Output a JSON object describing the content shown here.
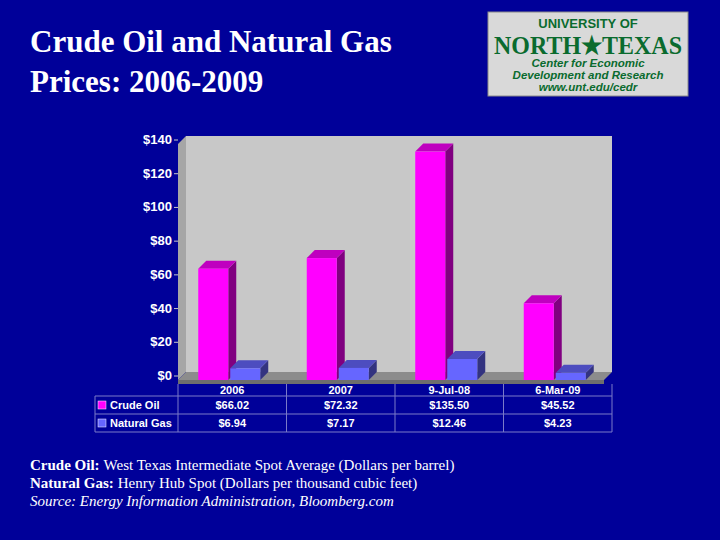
{
  "chart_data": {
    "type": "bar",
    "title": "Crude Oil and Natural Gas Prices: 2006-2009",
    "categories": [
      "2006",
      "2007",
      "9-Jul-08",
      "6-Mar-09"
    ],
    "series": [
      {
        "name": "Crude Oil",
        "color": "#ff00ff",
        "values": [
          66.02,
          72.32,
          135.5,
          45.52
        ],
        "value_labels": [
          "$66.02",
          "$72.32",
          "$135.50",
          "$45.52"
        ]
      },
      {
        "name": "Natural Gas",
        "color": "#6666ff",
        "values": [
          6.94,
          7.17,
          12.46,
          4.23
        ],
        "value_labels": [
          "$6.94",
          "$7.17",
          "$12.46",
          "$4.23"
        ]
      }
    ],
    "ylim": [
      0,
      140
    ],
    "yticks": [
      {
        "value": 0,
        "label": "$0"
      },
      {
        "value": 20,
        "label": "$20"
      },
      {
        "value": 40,
        "label": "$40"
      },
      {
        "value": 60,
        "label": "$60"
      },
      {
        "value": 80,
        "label": "$80"
      },
      {
        "value": 100,
        "label": "$100"
      },
      {
        "value": 120,
        "label": "$120"
      },
      {
        "value": 140,
        "label": "$140"
      }
    ],
    "grid": false,
    "data_labels": true,
    "notes": [
      {
        "term": "Crude Oil:",
        "text": "West Texas Intermediate Spot Average (Dollars per barrel)"
      },
      {
        "term": "Natural Gas:",
        "text": "Henry Hub Spot (Dollars per thousand cubic feet)"
      }
    ],
    "source": "Source: Energy Information Administration, Bloomberg.com"
  },
  "logo": {
    "lines": [
      "UNIVERSITY OF",
      "NORTH★TEXAS",
      "Center for Economic",
      "Development and Research",
      "www.unt.edu/cedr"
    ]
  }
}
